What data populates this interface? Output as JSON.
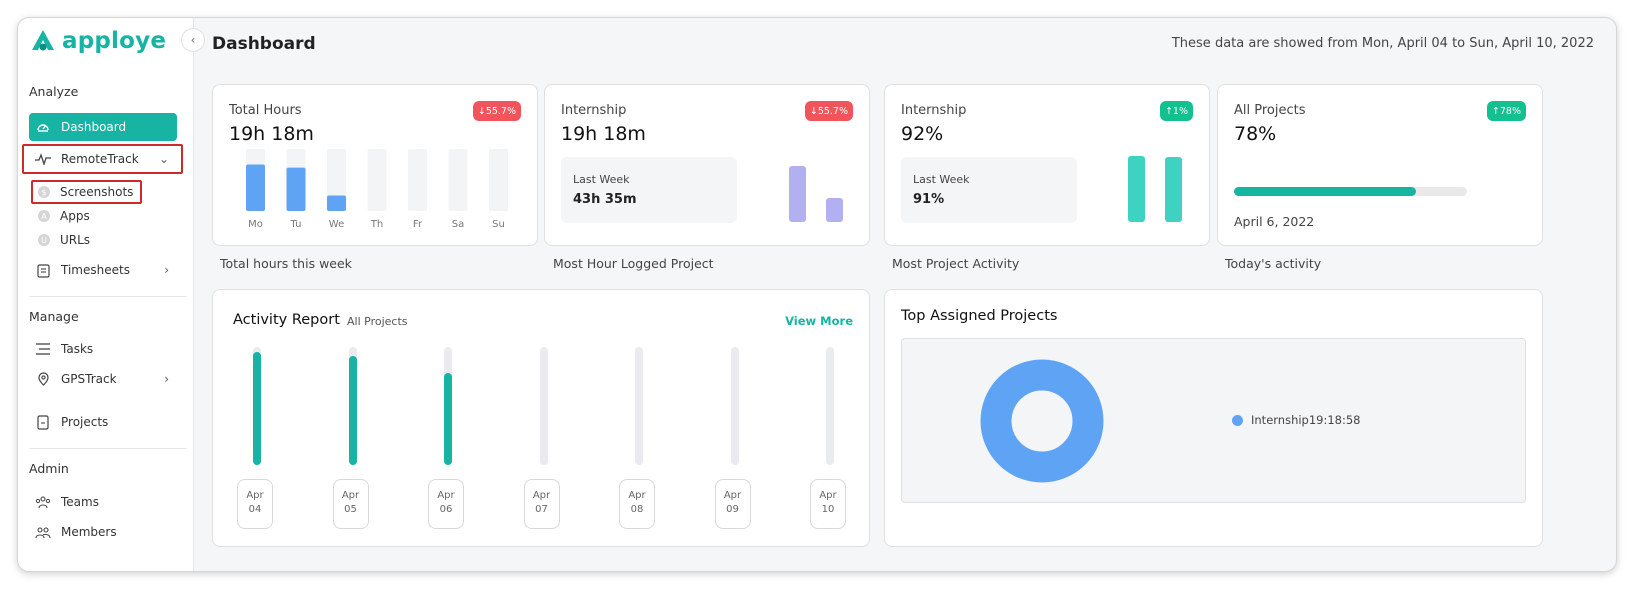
{
  "brand": {
    "name": "apploye",
    "color": "#17b3a3"
  },
  "sidebar": {
    "collapse_icon": "chevron-left-icon",
    "sections": {
      "analyze": "Analyze",
      "manage": "Manage",
      "admin": "Admin"
    },
    "items": {
      "dashboard": {
        "label": "Dashboard",
        "icon": "speedometer-icon",
        "active": true
      },
      "remotetrack": {
        "label": "RemoteTrack",
        "icon": "pulse-icon",
        "expanded": true
      },
      "screenshots": {
        "label": "Screenshots",
        "icon": "dollar-icon"
      },
      "apps": {
        "label": "Apps",
        "icon": "apps-icon"
      },
      "urls": {
        "label": "URLs",
        "icon": "url-icon"
      },
      "timesheets": {
        "label": "Timesheets",
        "icon": "clipboard-icon"
      },
      "tasks": {
        "label": "Tasks",
        "icon": "list-icon"
      },
      "gpstrack": {
        "label": "GPSTrack",
        "icon": "location-pin-icon"
      },
      "projects": {
        "label": "Projects",
        "icon": "document-icon"
      },
      "teams": {
        "label": "Teams",
        "icon": "team-icon"
      },
      "members": {
        "label": "Members",
        "icon": "members-icon"
      }
    }
  },
  "header": {
    "title": "Dashboard",
    "date_range": "These data are showed from Mon, April 04 to Sun, April 10, 2022"
  },
  "cards": {
    "total_hours": {
      "label": "Total Hours",
      "value": "19h 18m",
      "badge": "↓55.7%",
      "badge_dir": "down",
      "caption": "Total hours this week"
    },
    "most_hour": {
      "label": "Internship",
      "value": "19h 18m",
      "badge": "↓55.7%",
      "badge_dir": "down",
      "last_week_label": "Last Week",
      "last_week_value": "43h 35m",
      "bar_this": 1.0,
      "bar_last": 0.43,
      "caption": "Most Hour Logged Project"
    },
    "most_activity": {
      "label": "Internship",
      "value": "92%",
      "badge": "↑1%",
      "badge_dir": "up",
      "last_week_label": "Last Week",
      "last_week_value": "91%",
      "bar_this": 0.92,
      "bar_last": 0.91,
      "caption": "Most Project Activity"
    },
    "today": {
      "label": "All Projects",
      "value": "78%",
      "badge": "↑78%",
      "badge_dir": "up",
      "progress": 0.78,
      "date": "April 6, 2022",
      "caption": "Today's activity"
    }
  },
  "chart_data": [
    {
      "type": "bar",
      "categories": [
        "Mo",
        "Tu",
        "We",
        "Th",
        "Fr",
        "Sa",
        "Su"
      ],
      "values": [
        0.75,
        0.7,
        0.25,
        0,
        0,
        0,
        0
      ],
      "max": 1.0,
      "color": "#5fa3f5"
    },
    {
      "type": "bar",
      "title": "Activity Report",
      "categories": [
        "Apr 04",
        "Apr 05",
        "Apr 06",
        "Apr 07",
        "Apr 08",
        "Apr 09",
        "Apr 10"
      ],
      "values": [
        96,
        92,
        78,
        0,
        0,
        0,
        0
      ],
      "ylim": [
        0,
        100
      ],
      "color": "#17b3a3"
    },
    {
      "type": "pie",
      "title": "Top Assigned Projects",
      "series": [
        {
          "name": "Internship",
          "value": "19:18:58",
          "share": 1.0
        }
      ],
      "color": "#5fa3f5"
    }
  ],
  "activity_report": {
    "title": "Activity Report",
    "filter": "All Projects",
    "view_more": "View More"
  },
  "top_projects": {
    "title": "Top Assigned Projects",
    "legend": "Internship19:18:58"
  },
  "colors": {
    "accent": "#17b3a3",
    "down": "#f2545b",
    "up": "#13c08f",
    "blue": "#5fa3f5",
    "purple": "#b3b0f2",
    "teal_bar": "#3dd3c0"
  }
}
